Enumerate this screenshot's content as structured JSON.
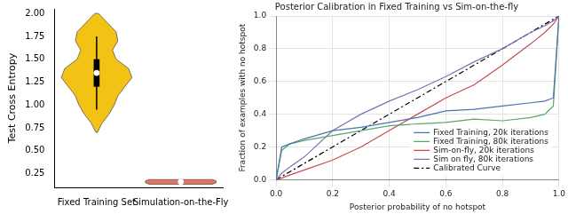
{
  "chart_data": [
    {
      "type": "violin",
      "ylabel": "Test Cross Entropy",
      "categories": [
        "Fixed Training Set",
        "Simulation-on-the-Fly"
      ],
      "colors": [
        "#f2c314",
        "#e8735a"
      ],
      "ylim": [
        0.1,
        2.05
      ],
      "yticks": [
        0.25,
        {
          "value": 0.5,
          "label": "0.50"
        },
        0.75,
        {
          "value": 1.0,
          "label": "1.00"
        },
        1.25,
        {
          "value": 1.5,
          "label": "1.50"
        },
        1.75,
        {
          "value": 2.0,
          "label": "2.00"
        }
      ],
      "grid": false,
      "violins": [
        {
          "y": [
            0.7,
            0.8,
            0.9,
            1.0,
            1.1,
            1.2,
            1.3,
            1.4,
            1.5,
            1.6,
            1.7,
            1.8,
            1.9,
            2.0
          ],
          "density": [
            0.02,
            0.15,
            0.35,
            0.5,
            0.6,
            0.8,
            1.0,
            0.9,
            0.55,
            0.45,
            0.6,
            0.55,
            0.3,
            0.05
          ]
        },
        {
          "y": [
            0.135,
            0.15,
            0.16,
            0.17,
            0.185
          ],
          "density": [
            0.9,
            1.0,
            1.0,
            1.0,
            0.9
          ]
        }
      ],
      "box": [
        {
          "whisker_low": 0.95,
          "q1": 1.2,
          "median": 1.35,
          "q3": 1.5,
          "whisker_high": 1.75
        },
        {
          "whisker_low": 0.15,
          "q1": 0.155,
          "median": 0.16,
          "q3": 0.165,
          "whisker_high": 0.17
        }
      ]
    },
    {
      "type": "line",
      "title": "Posterior Calibration in Fixed Training vs Sim-on-the-fly",
      "xlabel": "Posterior probability of no hotspot",
      "ylabel": "Fraction of examples with no hotspot",
      "x": [
        0,
        0.02,
        0.05,
        0.1,
        0.2,
        0.3,
        0.4,
        0.5,
        0.6,
        0.7,
        0.8,
        0.9,
        0.95,
        0.98,
        1.0
      ],
      "xlim": [
        0,
        1
      ],
      "ylim": [
        0,
        1
      ],
      "xticks": [
        {
          "value": 0,
          "label": "0.0"
        },
        0.2,
        0.4,
        0.6,
        0.8,
        {
          "value": 1,
          "label": "1.0"
        }
      ],
      "yticks": [
        {
          "value": 0,
          "label": "0.0"
        },
        0.2,
        0.4,
        0.6,
        0.8,
        {
          "value": 1,
          "label": "1.0"
        }
      ],
      "grid": true,
      "legend": "lower right",
      "series": [
        {
          "name": "Fixed Training, 20k iterations",
          "color": "#4c72b0",
          "line_style": "solid",
          "values": [
            0,
            0.2,
            0.22,
            0.25,
            0.3,
            0.32,
            0.35,
            0.38,
            0.42,
            0.43,
            0.45,
            0.47,
            0.48,
            0.5,
            1.0
          ]
        },
        {
          "name": "Fixed Training, 80k iterations",
          "color": "#55a868",
          "line_style": "solid",
          "values": [
            0,
            0.18,
            0.22,
            0.24,
            0.27,
            0.3,
            0.33,
            0.34,
            0.35,
            0.37,
            0.36,
            0.38,
            0.4,
            0.45,
            1.0
          ]
        },
        {
          "name": "Sim-on-fly, 20k iterations",
          "color": "#c44e52",
          "line_style": "solid",
          "values": [
            0,
            0.01,
            0.03,
            0.06,
            0.12,
            0.2,
            0.3,
            0.4,
            0.5,
            0.58,
            0.7,
            0.83,
            0.9,
            0.95,
            1.0
          ]
        },
        {
          "name": "Sim on fly, 80k iterations",
          "color": "#8172b2",
          "line_style": "solid",
          "values": [
            0,
            0.04,
            0.08,
            0.14,
            0.3,
            0.4,
            0.48,
            0.55,
            0.63,
            0.72,
            0.8,
            0.9,
            0.94,
            0.97,
            1.0
          ]
        },
        {
          "name": "Calibrated Curve",
          "color": "#000000",
          "line_style": "dashdot",
          "values": [
            0,
            0.02,
            0.05,
            0.1,
            0.2,
            0.3,
            0.4,
            0.5,
            0.6,
            0.7,
            0.8,
            0.9,
            0.95,
            0.98,
            1.0
          ]
        }
      ]
    }
  ]
}
